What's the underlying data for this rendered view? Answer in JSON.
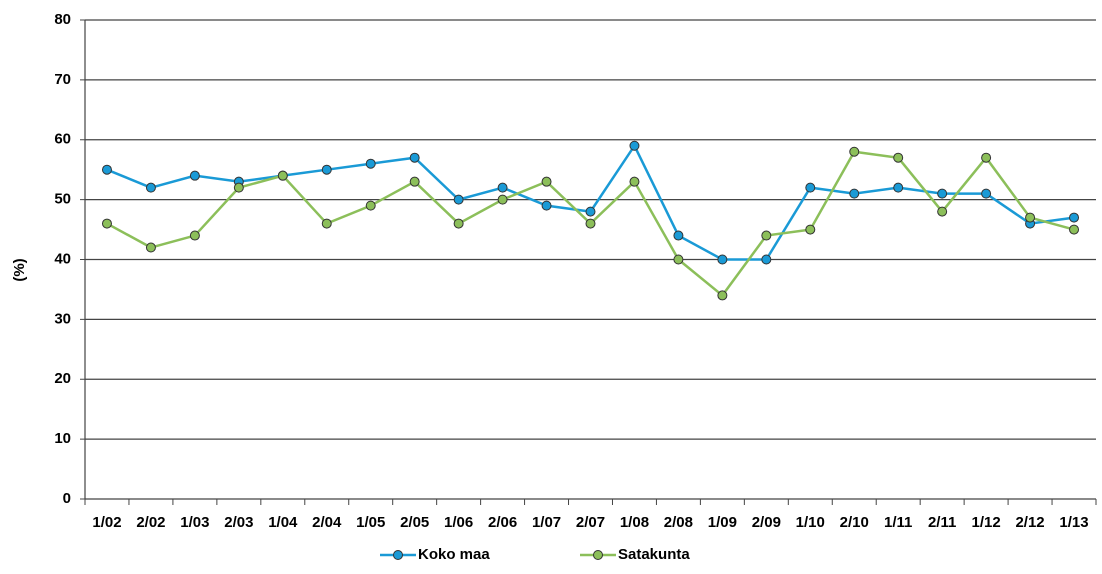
{
  "chart_data": {
    "type": "line",
    "y_label": "(%)",
    "categories": [
      "1/02",
      "2/02",
      "1/03",
      "2/03",
      "1/04",
      "2/04",
      "1/05",
      "2/05",
      "1/06",
      "2/06",
      "1/07",
      "2/07",
      "1/08",
      "2/08",
      "1/09",
      "2/09",
      "1/10",
      "2/10",
      "1/11",
      "2/11",
      "1/12",
      "2/12",
      "1/13"
    ],
    "series": [
      {
        "name": "Koko maa",
        "color": "#1a9ad6",
        "values": [
          55,
          52,
          54,
          53,
          54,
          55,
          56,
          57,
          50,
          52,
          49,
          48,
          59,
          44,
          40,
          40,
          52,
          51,
          52,
          51,
          51,
          46,
          47
        ]
      },
      {
        "name": "Satakunta",
        "color": "#8cbf5a",
        "values": [
          46,
          42,
          44,
          52,
          54,
          46,
          49,
          53,
          46,
          50,
          53,
          46,
          53,
          40,
          34,
          44,
          45,
          58,
          57,
          48,
          57,
          47,
          45
        ]
      }
    ],
    "ylim": [
      0,
      80
    ],
    "yticks": [
      0,
      10,
      20,
      30,
      40,
      50,
      60,
      70,
      80
    ],
    "grid": true
  }
}
